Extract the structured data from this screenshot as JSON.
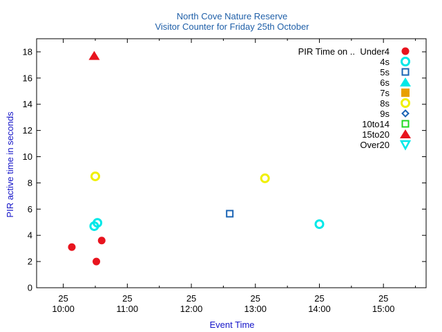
{
  "chart_data": {
    "type": "scatter",
    "title": "North Cove Nature Reserve",
    "subtitle": "Visitor Counter for Friday 25th October",
    "xlabel": "Event Time",
    "ylabel": "PIR active time in seconds",
    "xlim": [
      "09:35",
      "15:40"
    ],
    "ylim": [
      0,
      19
    ],
    "y_ticks": [
      0,
      2,
      4,
      6,
      8,
      10,
      12,
      14,
      16,
      18
    ],
    "x_ticks": [
      {
        "day": "25",
        "time": "10:00"
      },
      {
        "day": "25",
        "time": "11:00"
      },
      {
        "day": "25",
        "time": "12:00"
      },
      {
        "day": "25",
        "time": "13:00"
      },
      {
        "day": "25",
        "time": "14:00"
      },
      {
        "day": "25",
        "time": "15:00"
      }
    ],
    "grid": false,
    "legend_position": "top-right",
    "legend_title": "PIR Time on ..",
    "series": [
      {
        "name": "Under4",
        "marker": "circle-filled",
        "color": "#e8141e",
        "points": [
          {
            "x": "10:08",
            "y": 3.1
          },
          {
            "x": "10:31",
            "y": 2.0
          },
          {
            "x": "10:36",
            "y": 3.6
          }
        ]
      },
      {
        "name": "4s",
        "marker": "circle-open",
        "color": "#00e8e8",
        "points": [
          {
            "x": "10:29",
            "y": 4.7
          },
          {
            "x": "10:32",
            "y": 4.95
          },
          {
            "x": "14:00",
            "y": 4.85
          }
        ]
      },
      {
        "name": "5s",
        "marker": "square-open",
        "color": "#1a64b4",
        "points": [
          {
            "x": "12:36",
            "y": 5.65
          }
        ]
      },
      {
        "name": "6s",
        "marker": "triangle-up-filled",
        "color": "#00e8e8",
        "points": []
      },
      {
        "name": "7s",
        "marker": "square-filled",
        "color": "#e8a000",
        "points": []
      },
      {
        "name": "8s",
        "marker": "circle-open",
        "color": "#f0f000",
        "points": [
          {
            "x": "10:30",
            "y": 8.5
          },
          {
            "x": "13:09",
            "y": 8.35
          }
        ]
      },
      {
        "name": "9s",
        "marker": "diamond-open",
        "color": "#1a64b4",
        "points": []
      },
      {
        "name": "10to14",
        "marker": "square-open",
        "color": "#20d820",
        "points": []
      },
      {
        "name": "15to20",
        "marker": "triangle-up-filled",
        "color": "#e8141e",
        "points": [
          {
            "x": "10:29",
            "y": 17.7
          }
        ]
      },
      {
        "name": "Over20",
        "marker": "triangle-down-open",
        "color": "#00e8e8",
        "points": []
      }
    ]
  }
}
